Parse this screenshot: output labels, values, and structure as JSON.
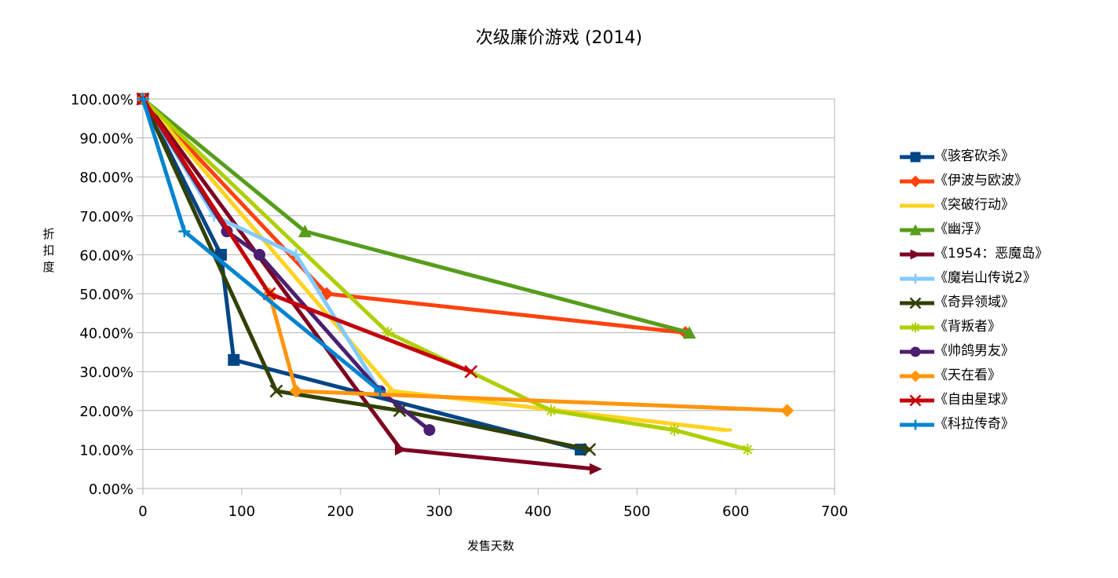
{
  "chart_data": {
    "type": "line",
    "title": "次级廉价游戏 (2014)",
    "xlabel": "发售天数",
    "ylabel": "折扣度",
    "xlim": [
      0,
      700
    ],
    "ylim": [
      0,
      1
    ],
    "x_ticks": [
      0,
      100,
      200,
      300,
      400,
      500,
      600,
      700
    ],
    "y_ticks": [
      0,
      0.1,
      0.2,
      0.3,
      0.4,
      0.5,
      0.6,
      0.7,
      0.8,
      0.9,
      1.0
    ],
    "x_tick_labels": [
      "0",
      "100",
      "200",
      "300",
      "400",
      "500",
      "600",
      "700"
    ],
    "y_tick_labels": [
      "0.00%",
      "10.00%",
      "20.00%",
      "30.00%",
      "40.00%",
      "50.00%",
      "60.00%",
      "70.00%",
      "80.00%",
      "90.00%",
      "100.00%"
    ],
    "grid": true,
    "legend_position": "right",
    "series": [
      {
        "name": "《骇客砍杀》",
        "color": "#004586",
        "marker": "square",
        "x": [
          0,
          79,
          92,
          443
        ],
        "y": [
          1.0,
          0.6,
          0.33,
          0.1
        ]
      },
      {
        "name": "《伊波与欧波》",
        "color": "#ff420e",
        "marker": "diamond",
        "x": [
          0,
          186,
          549
        ],
        "y": [
          1.0,
          0.5,
          0.4
        ]
      },
      {
        "name": "《突破行动》",
        "color": "#ffd320",
        "marker": "dash",
        "x": [
          0,
          253,
          590
        ],
        "y": [
          1.0,
          0.25,
          0.15
        ]
      },
      {
        "name": "《幽浮》",
        "color": "#579d1c",
        "marker": "triangle",
        "x": [
          0,
          164,
          553
        ],
        "y": [
          1.0,
          0.66,
          0.4
        ]
      },
      {
        "name": "《1954：恶魔岛》",
        "color": "#7e0021",
        "marker": "triangle-right",
        "x": [
          0,
          261,
          458
        ],
        "y": [
          1.0,
          0.1,
          0.05
        ]
      },
      {
        "name": "《魔岩山传说2》",
        "color": "#83caff",
        "marker": "plus",
        "x": [
          0,
          72,
          155,
          240
        ],
        "y": [
          1.0,
          0.7,
          0.6,
          0.25
        ]
      },
      {
        "name": "《奇异领域》",
        "color": "#314004",
        "marker": "x",
        "x": [
          0,
          135,
          260,
          452
        ],
        "y": [
          1.0,
          0.25,
          0.2,
          0.1
        ]
      },
      {
        "name": "《背叛者》",
        "color": "#aecf00",
        "marker": "asterisk",
        "x": [
          0,
          248,
          413,
          538,
          612
        ],
        "y": [
          1.0,
          0.4,
          0.2,
          0.15,
          0.1
        ]
      },
      {
        "name": "《帅鸽男友》",
        "color": "#4b1f6f",
        "marker": "circle",
        "x": [
          0,
          85,
          118,
          240,
          290
        ],
        "y": [
          1.0,
          0.66,
          0.6,
          0.25,
          0.15
        ]
      },
      {
        "name": "《天在看》",
        "color": "#ff950e",
        "marker": "diamond",
        "x": [
          0,
          128,
          155,
          652
        ],
        "y": [
          1.0,
          0.5,
          0.25,
          0.2
        ]
      },
      {
        "name": "《自由星球》",
        "color": "#c5000b",
        "marker": "x",
        "x": [
          0,
          128,
          332
        ],
        "y": [
          1.0,
          0.5,
          0.3
        ]
      },
      {
        "name": "《科拉传奇》",
        "color": "#0084d1",
        "marker": "plus",
        "x": [
          0,
          42,
          240
        ],
        "y": [
          1.0,
          0.66,
          0.25
        ]
      }
    ]
  }
}
